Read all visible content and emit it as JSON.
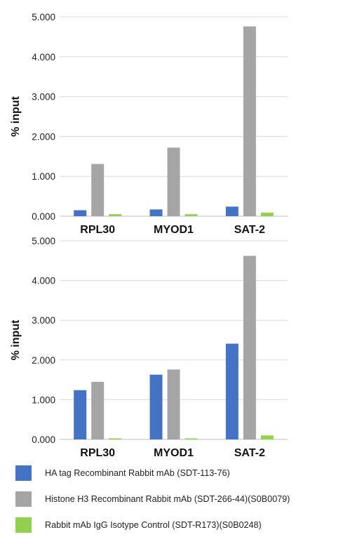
{
  "chart_data": [
    {
      "type": "bar",
      "categories": [
        "RPL30",
        "MYOD1",
        "SAT-2"
      ],
      "ylabel": "% input",
      "ylim": [
        0,
        5
      ],
      "yticks": [
        "0.000",
        "1.000",
        "2.000",
        "3.000",
        "4.000",
        "5.000"
      ],
      "grid": true,
      "series": [
        {
          "name": "HA tag Recombinant Rabbit mAb (SDT-113-76)",
          "values": [
            0.15,
            0.17,
            0.24
          ]
        },
        {
          "name": "Histone H3 Recombinant Rabbit mAb (SDT-266-44)(S0B0079)",
          "values": [
            1.31,
            1.72,
            4.76
          ]
        },
        {
          "name": "Rabbit mAb IgG Isotype Control (SDT-R173)(S0B0248)",
          "values": [
            0.05,
            0.05,
            0.09
          ]
        }
      ]
    },
    {
      "type": "bar",
      "categories": [
        "RPL30",
        "MYOD1",
        "SAT-2"
      ],
      "ylabel": "% input",
      "ylim": [
        0,
        5
      ],
      "yticks": [
        "0.000",
        "1.000",
        "2.000",
        "3.000",
        "4.000",
        "5.000"
      ],
      "grid": true,
      "series": [
        {
          "name": "HA tag Recombinant Rabbit mAb (SDT-113-76)",
          "values": [
            1.24,
            1.63,
            2.41
          ]
        },
        {
          "name": "Histone H3 Recombinant Rabbit mAb (SDT-266-44)(S0B0079)",
          "values": [
            1.45,
            1.76,
            4.62
          ]
        },
        {
          "name": "Rabbit mAb IgG Isotype Control (SDT-R173)(S0B0248)",
          "values": [
            0.01,
            0.01,
            0.1
          ]
        }
      ]
    }
  ],
  "legend": {
    "items": [
      {
        "label": "HA tag Recombinant Rabbit mAb (SDT-113-76)",
        "color": "#4472c4"
      },
      {
        "label": "Histone H3 Recombinant Rabbit mAb (SDT-266-44)(S0B0079)",
        "color": "#a5a5a5"
      },
      {
        "label": "Rabbit mAb IgG Isotype Control (SDT-R173)(S0B0248)",
        "color": "#92d050"
      }
    ]
  },
  "colors": {
    "series": [
      "#4472c4",
      "#a5a5a5",
      "#92d050"
    ],
    "grid": "#d9d9d9",
    "axis": "#bfbfbf"
  }
}
